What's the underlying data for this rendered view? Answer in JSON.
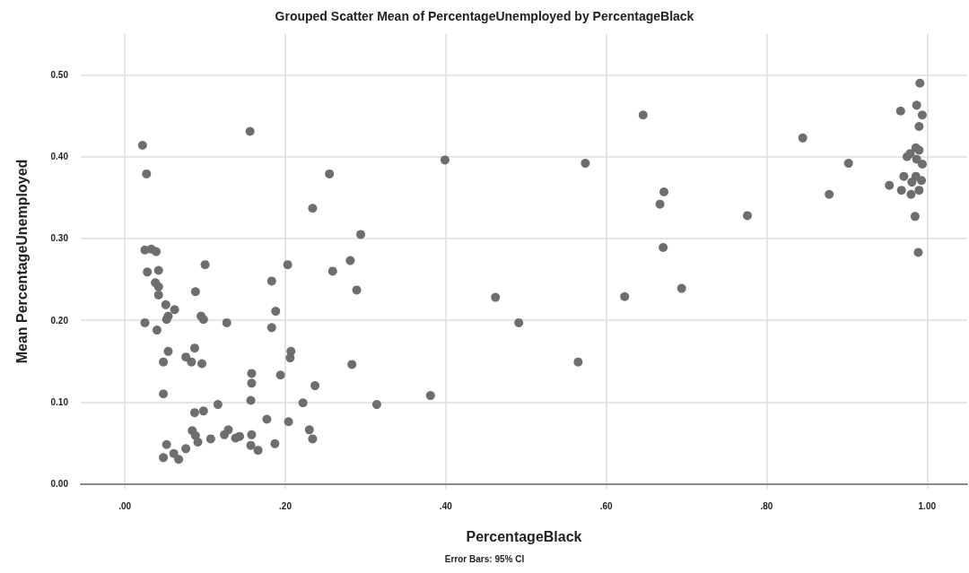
{
  "chart_data": {
    "type": "scatter",
    "title": "Grouped Scatter Mean of PercentageUnemployed by PercentageBlack",
    "xlabel": "PercentageBlack",
    "ylabel": "Mean PercentageUnemployed",
    "annotations": [
      "Error Bars: 95% CI"
    ],
    "x": [
      0.022,
      0.027,
      0.025,
      0.033,
      0.039,
      0.028,
      0.042,
      0.038,
      0.042,
      0.042,
      0.051,
      0.062,
      0.054,
      0.052,
      0.025,
      0.04,
      0.054,
      0.048,
      0.048,
      0.052,
      0.048,
      0.061,
      0.067,
      0.076,
      0.088,
      0.095,
      0.098,
      0.127,
      0.087,
      0.076,
      0.083,
      0.096,
      0.116,
      0.087,
      0.098,
      0.084,
      0.088,
      0.091,
      0.107,
      0.124,
      0.129,
      0.138,
      0.143,
      0.158,
      0.157,
      0.166,
      0.187,
      0.158,
      0.158,
      0.157,
      0.177,
      0.183,
      0.188,
      0.183,
      0.194,
      0.207,
      0.206,
      0.204,
      0.222,
      0.23,
      0.234,
      0.156,
      0.234,
      0.1,
      0.203,
      0.255,
      0.399,
      0.294,
      0.281,
      0.259,
      0.289,
      0.462,
      0.491,
      0.283,
      0.237,
      0.314,
      0.381,
      0.646,
      0.574,
      0.672,
      0.667,
      0.776,
      0.671,
      0.623,
      0.694,
      0.565,
      0.845,
      0.902,
      0.878,
      0.991,
      0.967,
      0.987,
      0.994,
      0.99,
      0.986,
      0.979,
      0.975,
      0.99,
      0.987,
      0.994,
      0.971,
      0.986,
      0.981,
      0.993,
      0.953,
      0.968,
      0.98,
      0.99,
      0.985,
      0.989
    ],
    "values": [
      0.414,
      0.379,
      0.286,
      0.287,
      0.284,
      0.259,
      0.261,
      0.246,
      0.241,
      0.231,
      0.219,
      0.213,
      0.205,
      0.201,
      0.197,
      0.188,
      0.162,
      0.149,
      0.11,
      0.048,
      0.032,
      0.037,
      0.03,
      0.043,
      0.235,
      0.205,
      0.201,
      0.197,
      0.166,
      0.155,
      0.149,
      0.147,
      0.097,
      0.087,
      0.089,
      0.065,
      0.059,
      0.051,
      0.055,
      0.06,
      0.066,
      0.056,
      0.058,
      0.06,
      0.047,
      0.041,
      0.049,
      0.135,
      0.123,
      0.102,
      0.079,
      0.248,
      0.211,
      0.191,
      0.133,
      0.162,
      0.154,
      0.076,
      0.099,
      0.066,
      0.055,
      0.431,
      0.337,
      0.268,
      0.268,
      0.379,
      0.396,
      0.305,
      0.273,
      0.26,
      0.237,
      0.228,
      0.197,
      0.146,
      0.12,
      0.097,
      0.108,
      0.451,
      0.392,
      0.357,
      0.342,
      0.328,
      0.289,
      0.229,
      0.239,
      0.149,
      0.423,
      0.392,
      0.354,
      0.49,
      0.456,
      0.463,
      0.451,
      0.437,
      0.411,
      0.404,
      0.4,
      0.408,
      0.397,
      0.391,
      0.376,
      0.376,
      0.369,
      0.371,
      0.365,
      0.359,
      0.354,
      0.359,
      0.327,
      0.283
    ],
    "color": "#6e6e6e",
    "marker": "circle",
    "grid": true,
    "xlim": [
      -0.055,
      1.05
    ],
    "ylim": [
      -0.006,
      0.55
    ],
    "xticks": [
      {
        "value": 0,
        "label": ".00"
      },
      {
        "value": 0.2,
        "label": ".20"
      },
      {
        "value": 0.4,
        "label": ".40"
      },
      {
        "value": 0.6,
        "label": ".60"
      },
      {
        "value": 0.8,
        "label": ".80"
      },
      {
        "value": 1,
        "label": "1.00"
      }
    ],
    "yticks": [
      {
        "value": 0,
        "label": "0.00"
      },
      {
        "value": 0.1,
        "label": "0.10"
      },
      {
        "value": 0.2,
        "label": "0.20"
      },
      {
        "value": 0.3,
        "label": "0.30"
      },
      {
        "value": 0.4,
        "label": "0.40"
      },
      {
        "value": 0.5,
        "label": "0.50"
      }
    ]
  }
}
